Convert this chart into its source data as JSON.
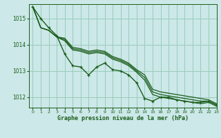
{
  "title": "Graphe pression niveau de la mer (hPa)",
  "background_color": "#cce8e8",
  "grid_color": "#99ccbb",
  "line_color": "#1a5c1a",
  "xlim": [
    -0.5,
    23
  ],
  "ylim": [
    1011.6,
    1015.55
  ],
  "yticks": [
    1012,
    1013,
    1014,
    1015
  ],
  "xticks": [
    0,
    1,
    2,
    3,
    4,
    5,
    6,
    7,
    8,
    9,
    10,
    11,
    12,
    13,
    14,
    15,
    16,
    17,
    18,
    19,
    20,
    21,
    22,
    23
  ],
  "series": [
    {
      "y": [
        1015.45,
        1015.0,
        1014.65,
        1014.35,
        1013.65,
        1013.2,
        1013.15,
        1012.85,
        1013.15,
        1013.3,
        1013.05,
        1013.0,
        1012.85,
        1012.55,
        1011.95,
        1011.85,
        1012.0,
        1012.0,
        1011.9,
        1011.85,
        1011.8,
        1011.8,
        1011.85,
        1011.7
      ],
      "marker": true,
      "lw": 1.0
    },
    {
      "y": [
        1015.45,
        1014.65,
        1014.55,
        1014.3,
        1014.25,
        1013.9,
        1013.85,
        1013.75,
        1013.8,
        1013.75,
        1013.55,
        1013.45,
        1013.3,
        1013.05,
        1012.85,
        1012.3,
        1012.2,
        1012.15,
        1012.1,
        1012.05,
        1012.0,
        1011.95,
        1011.9,
        1011.75
      ],
      "marker": false,
      "lw": 0.9
    },
    {
      "y": [
        1015.45,
        1014.65,
        1014.55,
        1014.3,
        1014.2,
        1013.85,
        1013.8,
        1013.7,
        1013.75,
        1013.7,
        1013.5,
        1013.4,
        1013.25,
        1013.0,
        1012.75,
        1012.2,
        1012.1,
        1012.05,
        1012.0,
        1011.95,
        1011.9,
        1011.85,
        1011.85,
        1011.7
      ],
      "marker": false,
      "lw": 0.9
    },
    {
      "y": [
        1015.45,
        1014.65,
        1014.55,
        1014.3,
        1014.15,
        1013.8,
        1013.75,
        1013.65,
        1013.7,
        1013.65,
        1013.45,
        1013.35,
        1013.2,
        1012.95,
        1012.65,
        1012.1,
        1012.0,
        1011.95,
        1011.9,
        1011.85,
        1011.8,
        1011.75,
        1011.8,
        1011.65
      ],
      "marker": false,
      "lw": 0.9
    }
  ]
}
